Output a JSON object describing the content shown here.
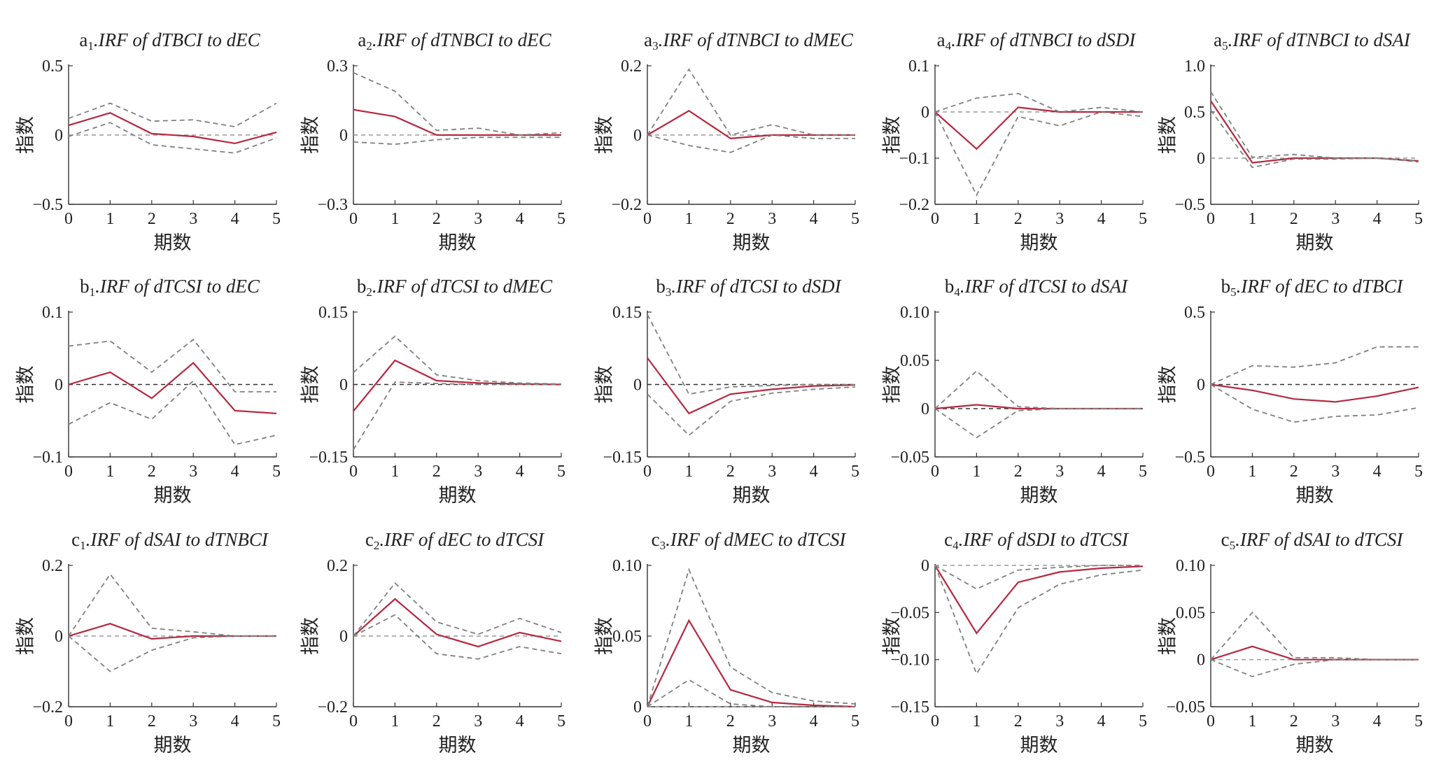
{
  "labels": {
    "ylabel": "指数",
    "xlabel": "期数"
  },
  "colors": {
    "irf": "#b5283e",
    "band": "#808080"
  },
  "chart_data": [
    {
      "id": "a1",
      "type": "line",
      "panel_letter": "a",
      "panel_index": "1",
      "title": ".IRF of dTBCI to dEC",
      "x": [
        0,
        1,
        2,
        3,
        4,
        5
      ],
      "ylim": [
        -0.5,
        0.5
      ],
      "yticks": [
        "−0.5",
        "0",
        "0.5"
      ],
      "yticks_v": [
        -0.5,
        0,
        0.5
      ],
      "zero_style": "light",
      "series": [
        {
          "role": "irf",
          "values": [
            0.07,
            0.16,
            0.01,
            -0.01,
            -0.06,
            0.02
          ]
        },
        {
          "role": "upper",
          "values": [
            0.12,
            0.23,
            0.1,
            0.11,
            0.06,
            0.23
          ]
        },
        {
          "role": "lower",
          "values": [
            -0.01,
            0.09,
            -0.07,
            -0.1,
            -0.13,
            -0.02
          ]
        }
      ]
    },
    {
      "id": "a2",
      "type": "line",
      "panel_letter": "a",
      "panel_index": "2",
      "title": ".IRF of dTNBCI to dEC",
      "x": [
        0,
        1,
        2,
        3,
        4,
        5
      ],
      "ylim": [
        -0.3,
        0.3
      ],
      "yticks": [
        "−0.3",
        "0",
        "0.3"
      ],
      "yticks_v": [
        -0.3,
        0,
        0.3
      ],
      "zero_style": "light",
      "series": [
        {
          "role": "irf",
          "values": [
            0.11,
            0.08,
            0.0,
            0.0,
            0.0,
            0.0
          ]
        },
        {
          "role": "upper",
          "values": [
            0.27,
            0.19,
            0.02,
            0.03,
            0.0,
            0.01
          ]
        },
        {
          "role": "lower",
          "values": [
            -0.03,
            -0.04,
            -0.02,
            -0.01,
            -0.01,
            -0.01
          ]
        }
      ]
    },
    {
      "id": "a3",
      "type": "line",
      "panel_letter": "a",
      "panel_index": "3",
      "title": ".IRF of dTNBCI to dMEC",
      "x": [
        0,
        1,
        2,
        3,
        4,
        5
      ],
      "ylim": [
        -0.2,
        0.2
      ],
      "yticks": [
        "−0.2",
        "0",
        "0.2"
      ],
      "yticks_v": [
        -0.2,
        0,
        0.2
      ],
      "zero_style": "light",
      "series": [
        {
          "role": "irf",
          "values": [
            0,
            0.07,
            -0.01,
            0.0,
            0.0,
            0.0
          ]
        },
        {
          "role": "upper",
          "values": [
            0,
            0.19,
            0.0,
            0.03,
            0.0,
            0.0
          ]
        },
        {
          "role": "lower",
          "values": [
            0,
            -0.03,
            -0.05,
            0.0,
            -0.01,
            -0.01
          ]
        }
      ]
    },
    {
      "id": "a4",
      "type": "line",
      "panel_letter": "a",
      "panel_index": "4",
      "title": ".IRF of dTNBCI to dSDI",
      "x": [
        0,
        1,
        2,
        3,
        4,
        5
      ],
      "ylim": [
        -0.2,
        0.1
      ],
      "yticks": [
        "−0.2",
        "−0.1",
        "0",
        "0.1"
      ],
      "yticks_v": [
        -0.2,
        -0.1,
        0,
        0.1
      ],
      "zero_style": "light",
      "series": [
        {
          "role": "irf",
          "values": [
            0,
            -0.08,
            0.01,
            0.0,
            0.0,
            0.0
          ]
        },
        {
          "role": "upper",
          "values": [
            0,
            0.03,
            0.04,
            0.0,
            0.01,
            0.0
          ]
        },
        {
          "role": "lower",
          "values": [
            0,
            -0.18,
            -0.01,
            -0.03,
            0.0,
            -0.01
          ]
        }
      ]
    },
    {
      "id": "a5",
      "type": "line",
      "panel_letter": "a",
      "panel_index": "5",
      "title": ".IRF of dTNBCI to dSAI",
      "x": [
        0,
        1,
        2,
        3,
        4,
        5
      ],
      "ylim": [
        -0.5,
        1.0
      ],
      "yticks": [
        "−0.5",
        "0",
        "0.5",
        "1.0"
      ],
      "yticks_v": [
        -0.5,
        0,
        0.5,
        1.0
      ],
      "zero_style": "light",
      "series": [
        {
          "role": "irf",
          "values": [
            0.62,
            -0.05,
            0.0,
            0.0,
            0.0,
            -0.03
          ]
        },
        {
          "role": "upper",
          "values": [
            0.72,
            0.01,
            0.04,
            0.0,
            0.0,
            -0.03
          ]
        },
        {
          "role": "lower",
          "values": [
            0.52,
            -0.1,
            -0.01,
            -0.01,
            0.0,
            -0.04
          ]
        }
      ]
    },
    {
      "id": "b1",
      "type": "line",
      "panel_letter": "b",
      "panel_index": "1",
      "title": ".IRF of dTCSI to dEC",
      "x": [
        0,
        1,
        2,
        3,
        4,
        5
      ],
      "ylim": [
        -0.1,
        0.1
      ],
      "yticks": [
        "−0.1",
        "0",
        "0.1"
      ],
      "yticks_v": [
        -0.1,
        0,
        0.1
      ],
      "zero_style": "dark",
      "series": [
        {
          "role": "irf",
          "values": [
            0.0,
            0.017,
            -0.019,
            0.03,
            -0.036,
            -0.04
          ]
        },
        {
          "role": "upper",
          "values": [
            0.053,
            0.06,
            0.017,
            0.062,
            -0.01,
            -0.01
          ]
        },
        {
          "role": "lower",
          "values": [
            -0.055,
            -0.025,
            -0.048,
            0.005,
            -0.083,
            -0.07
          ]
        }
      ]
    },
    {
      "id": "b2",
      "type": "line",
      "panel_letter": "b",
      "panel_index": "2",
      "title": ".IRF of dTCSI to dMEC",
      "x": [
        0,
        1,
        2,
        3,
        4,
        5
      ],
      "ylim": [
        -0.15,
        0.15
      ],
      "yticks": [
        "−0.15",
        "0",
        "0.15"
      ],
      "yticks_v": [
        -0.15,
        0,
        0.15
      ],
      "zero_style": "dark",
      "series": [
        {
          "role": "irf",
          "values": [
            -0.055,
            0.05,
            0.008,
            0.003,
            0.001,
            0.0
          ]
        },
        {
          "role": "upper",
          "values": [
            0.025,
            0.1,
            0.02,
            0.008,
            0.003,
            0.001
          ]
        },
        {
          "role": "lower",
          "values": [
            -0.135,
            0.005,
            0.002,
            0.0,
            0.0,
            0.0
          ]
        }
      ]
    },
    {
      "id": "b3",
      "type": "line",
      "panel_letter": "b",
      "panel_index": "3",
      "title": ".IRF of dTCSI to dSDI",
      "x": [
        0,
        1,
        2,
        3,
        4,
        5
      ],
      "ylim": [
        -0.15,
        0.15
      ],
      "yticks": [
        "−0.15",
        "0",
        "0.15"
      ],
      "yticks_v": [
        -0.15,
        0,
        0.15
      ],
      "zero_style": "dark",
      "series": [
        {
          "role": "irf",
          "values": [
            0.055,
            -0.06,
            -0.02,
            -0.01,
            -0.003,
            -0.001
          ]
        },
        {
          "role": "upper",
          "values": [
            0.145,
            -0.02,
            -0.005,
            -0.002,
            0.0,
            0.0
          ]
        },
        {
          "role": "lower",
          "values": [
            -0.02,
            -0.105,
            -0.035,
            -0.018,
            -0.01,
            -0.005
          ]
        }
      ]
    },
    {
      "id": "b4",
      "type": "line",
      "panel_letter": "b",
      "panel_index": "4",
      "title": ".IRF of dTCSI to dSAI",
      "x": [
        0,
        1,
        2,
        3,
        4,
        5
      ],
      "ylim": [
        -0.05,
        0.1
      ],
      "yticks": [
        "−0.05",
        "0",
        "0.05",
        "0.10"
      ],
      "yticks_v": [
        -0.05,
        0,
        0.05,
        0.1
      ],
      "zero_style": "dark",
      "series": [
        {
          "role": "irf",
          "values": [
            0,
            0.004,
            0.0,
            0.0,
            0.0,
            0.0
          ]
        },
        {
          "role": "upper",
          "values": [
            0,
            0.039,
            0.002,
            0.0,
            0.0,
            0.0
          ]
        },
        {
          "role": "lower",
          "values": [
            0,
            -0.03,
            -0.002,
            0.0,
            0.0,
            0.0
          ]
        }
      ]
    },
    {
      "id": "b5",
      "type": "line",
      "panel_letter": "b",
      "panel_index": "5",
      "title": ".IRF of dEC to dTBCI",
      "x": [
        0,
        1,
        2,
        3,
        4,
        5
      ],
      "ylim": [
        -0.5,
        0.5
      ],
      "yticks": [
        "−0.5",
        "0",
        "0.5"
      ],
      "yticks_v": [
        -0.5,
        0,
        0.5
      ],
      "zero_style": "dark",
      "series": [
        {
          "role": "irf",
          "values": [
            0,
            -0.04,
            -0.1,
            -0.12,
            -0.08,
            -0.02
          ]
        },
        {
          "role": "upper",
          "values": [
            0,
            0.13,
            0.12,
            0.15,
            0.26,
            0.26
          ]
        },
        {
          "role": "lower",
          "values": [
            0,
            -0.17,
            -0.26,
            -0.22,
            -0.21,
            -0.16
          ]
        }
      ]
    },
    {
      "id": "c1",
      "type": "line",
      "panel_letter": "c",
      "panel_index": "1",
      "title": ".IRF of dSAI to dTNBCI",
      "x": [
        0,
        1,
        2,
        3,
        4,
        5
      ],
      "ylim": [
        -0.2,
        0.2
      ],
      "yticks": [
        "−0.2",
        "0",
        "0.2"
      ],
      "yticks_v": [
        -0.2,
        0,
        0.2
      ],
      "zero_style": "light",
      "series": [
        {
          "role": "irf",
          "values": [
            0,
            0.035,
            -0.008,
            0.0,
            0.0,
            0.0
          ]
        },
        {
          "role": "upper",
          "values": [
            0,
            0.175,
            0.022,
            0.012,
            0.0,
            0.0
          ]
        },
        {
          "role": "lower",
          "values": [
            0,
            -0.1,
            -0.04,
            -0.005,
            0.0,
            0.0
          ]
        }
      ]
    },
    {
      "id": "c2",
      "type": "line",
      "panel_letter": "c",
      "panel_index": "2",
      "title": ".IRF of dEC to dTCSI",
      "x": [
        0,
        1,
        2,
        3,
        4,
        5
      ],
      "ylim": [
        -0.2,
        0.2
      ],
      "yticks": [
        "−0.2",
        "0",
        "0.2"
      ],
      "yticks_v": [
        -0.2,
        0,
        0.2
      ],
      "zero_style": "light",
      "series": [
        {
          "role": "irf",
          "values": [
            0,
            0.105,
            0.005,
            -0.03,
            0.01,
            -0.015
          ]
        },
        {
          "role": "upper",
          "values": [
            0,
            0.15,
            0.04,
            0.005,
            0.05,
            0.01
          ]
        },
        {
          "role": "lower",
          "values": [
            0,
            0.06,
            -0.05,
            -0.065,
            -0.03,
            -0.05
          ]
        }
      ]
    },
    {
      "id": "c3",
      "type": "line",
      "panel_letter": "c",
      "panel_index": "3",
      "title": ".IRF of dMEC to dTCSI",
      "x": [
        0,
        1,
        2,
        3,
        4,
        5
      ],
      "ylim": [
        0,
        0.1
      ],
      "yticks": [
        "0",
        "0.05",
        "0.10"
      ],
      "yticks_v": [
        0,
        0.05,
        0.1
      ],
      "zero_style": "light",
      "series": [
        {
          "role": "irf",
          "values": [
            0,
            0.061,
            0.012,
            0.003,
            0.001,
            0.0
          ]
        },
        {
          "role": "upper",
          "values": [
            0,
            0.097,
            0.028,
            0.01,
            0.004,
            0.002
          ]
        },
        {
          "role": "lower",
          "values": [
            0,
            0.019,
            0.002,
            0.0,
            0.0,
            0.0
          ]
        }
      ]
    },
    {
      "id": "c4",
      "type": "line",
      "panel_letter": "c",
      "panel_index": "4",
      "title": ".IRF of dSDI to dTCSI",
      "x": [
        0,
        1,
        2,
        3,
        4,
        5
      ],
      "ylim": [
        -0.15,
        0
      ],
      "yticks": [
        "−0.15",
        "−0.10",
        "−0.05",
        "0"
      ],
      "yticks_v": [
        -0.15,
        -0.1,
        -0.05,
        0
      ],
      "zero_style": "light",
      "series": [
        {
          "role": "irf",
          "values": [
            0,
            -0.072,
            -0.018,
            -0.007,
            -0.003,
            -0.001
          ]
        },
        {
          "role": "upper",
          "values": [
            0,
            -0.025,
            -0.005,
            -0.002,
            0.0,
            0.0
          ]
        },
        {
          "role": "lower",
          "values": [
            0,
            -0.115,
            -0.045,
            -0.02,
            -0.01,
            -0.005
          ]
        }
      ]
    },
    {
      "id": "c5",
      "type": "line",
      "panel_letter": "c",
      "panel_index": "5",
      "title": ".IRF of dSAI to dTCSI",
      "x": [
        0,
        1,
        2,
        3,
        4,
        5
      ],
      "ylim": [
        -0.05,
        0.1
      ],
      "yticks": [
        "−0.05",
        "0",
        "0.05",
        "0.10"
      ],
      "yticks_v": [
        -0.05,
        0,
        0.05,
        0.1
      ],
      "zero_style": "light",
      "series": [
        {
          "role": "irf",
          "values": [
            0,
            0.014,
            0.0,
            0.0,
            0.0,
            0.0
          ]
        },
        {
          "role": "upper",
          "values": [
            0,
            0.05,
            0.002,
            0.002,
            0.0,
            0.0
          ]
        },
        {
          "role": "lower",
          "values": [
            0,
            -0.018,
            -0.005,
            0.0,
            0.0,
            0.0
          ]
        }
      ]
    }
  ]
}
